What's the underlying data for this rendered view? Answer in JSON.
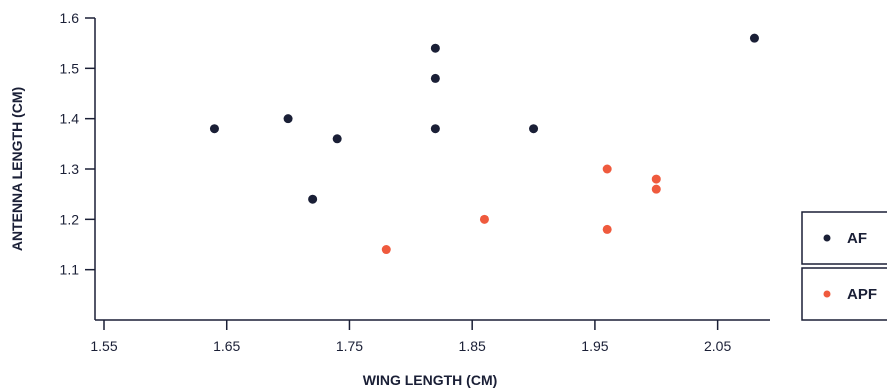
{
  "chart_data": {
    "type": "scatter",
    "title": "",
    "xlabel": "WING LENGTH (CM)",
    "ylabel": "ANTENNA LENGTH (CM)",
    "xlim": [
      1.55,
      2.1
    ],
    "ylim": [
      1.0,
      1.6
    ],
    "x_ticks": [
      1.55,
      1.65,
      1.75,
      1.85,
      1.95,
      2.05
    ],
    "x_tick_labels": [
      "1.55",
      "1.65",
      "1.75",
      "1.85",
      "1.95",
      "2.05"
    ],
    "y_ticks": [
      1.1,
      1.2,
      1.3,
      1.4,
      1.5,
      1.6
    ],
    "y_tick_labels": [
      "1.1",
      "1.2",
      "1.3",
      "1.4",
      "1.5",
      "1.6"
    ],
    "grid": false,
    "legend_position": "right",
    "series": [
      {
        "name": "AF",
        "color": "#1a1f36",
        "points": [
          {
            "x": 1.64,
            "y": 1.38
          },
          {
            "x": 1.7,
            "y": 1.4
          },
          {
            "x": 1.72,
            "y": 1.24
          },
          {
            "x": 1.74,
            "y": 1.36
          },
          {
            "x": 1.82,
            "y": 1.38
          },
          {
            "x": 1.82,
            "y": 1.48
          },
          {
            "x": 1.82,
            "y": 1.54
          },
          {
            "x": 1.9,
            "y": 1.38
          },
          {
            "x": 2.08,
            "y": 1.56
          }
        ]
      },
      {
        "name": "APF",
        "color": "#ef5a3d",
        "points": [
          {
            "x": 1.78,
            "y": 1.14
          },
          {
            "x": 1.86,
            "y": 1.2
          },
          {
            "x": 1.96,
            "y": 1.18
          },
          {
            "x": 1.96,
            "y": 1.3
          },
          {
            "x": 2.0,
            "y": 1.26
          },
          {
            "x": 2.0,
            "y": 1.28
          }
        ]
      }
    ]
  }
}
